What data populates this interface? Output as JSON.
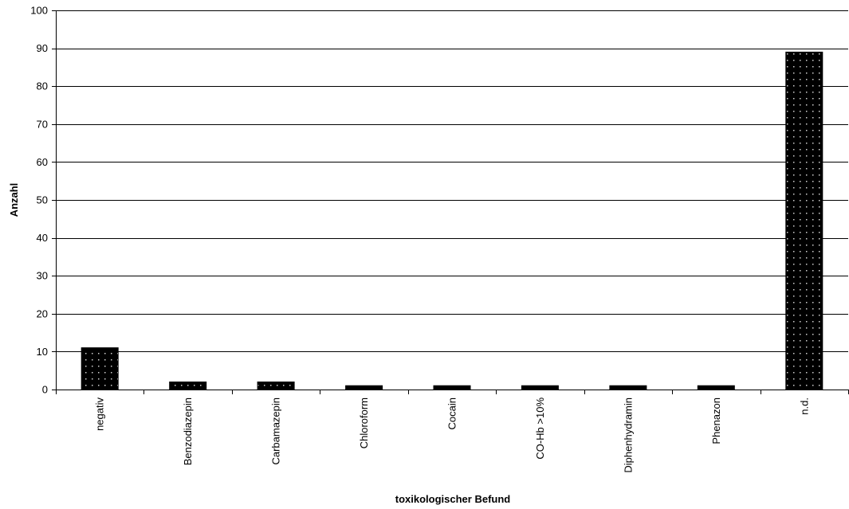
{
  "chart_data": {
    "type": "bar",
    "title": "",
    "xlabel": "toxikologischer Befund",
    "ylabel": "Anzahl",
    "categories": [
      "negativ",
      "Benzodiazepin",
      "Carbamazepin",
      "Chloroform",
      "Cocain",
      "CO-Hb >10%",
      "Diphenhydramin",
      "Phenazon",
      "n.d."
    ],
    "values": [
      11,
      2,
      2,
      1,
      1,
      1,
      1,
      1,
      89
    ],
    "ylim": [
      0,
      100
    ],
    "yticks": [
      0,
      10,
      20,
      30,
      40,
      50,
      60,
      70,
      80,
      90,
      100
    ],
    "grid": true,
    "legend": "none",
    "bar_fill": "#000000",
    "bar_dot_color": "#cfcfcf"
  }
}
